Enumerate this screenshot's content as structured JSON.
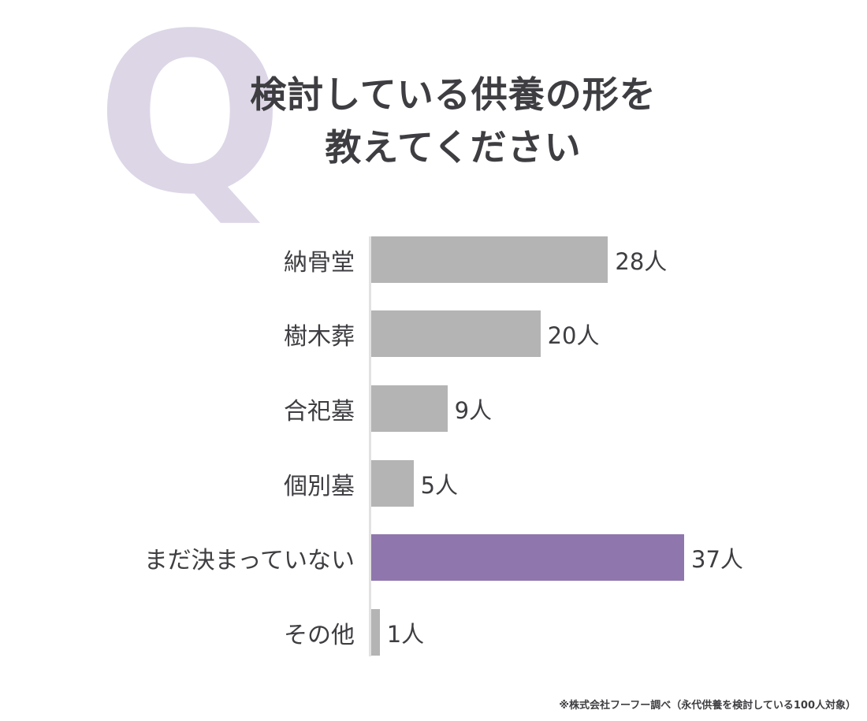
{
  "q_mark": "Q",
  "title": {
    "line1": "検討している供養の形を",
    "line2": "教えてください"
  },
  "footnote": "※株式会社フーフー調べ（永代供養を検討している100人対象）",
  "colors": {
    "bar_default": "#b4b4b4",
    "bar_highlight": "#8f77ad",
    "q_mark": "#ddd6e7",
    "axis": "#e2e2e2",
    "text": "#3e3e42",
    "background": "#ffffff"
  },
  "chart_data": {
    "type": "bar",
    "orientation": "horizontal",
    "title": "検討している供養の形を教えてください",
    "categories": [
      "納骨堂",
      "樹木葬",
      "合祀墓",
      "個別墓",
      "まだ決まっていない",
      "その他"
    ],
    "values": [
      28,
      20,
      9,
      5,
      37,
      1
    ],
    "unit": "人",
    "value_labels": [
      "28人",
      "20人",
      "9人",
      "5人",
      "37人",
      "1人"
    ],
    "highlight_index": 4,
    "highlight_category": "まだ決まっていない",
    "xlim": [
      0,
      37
    ],
    "grid": false,
    "legend": false
  }
}
